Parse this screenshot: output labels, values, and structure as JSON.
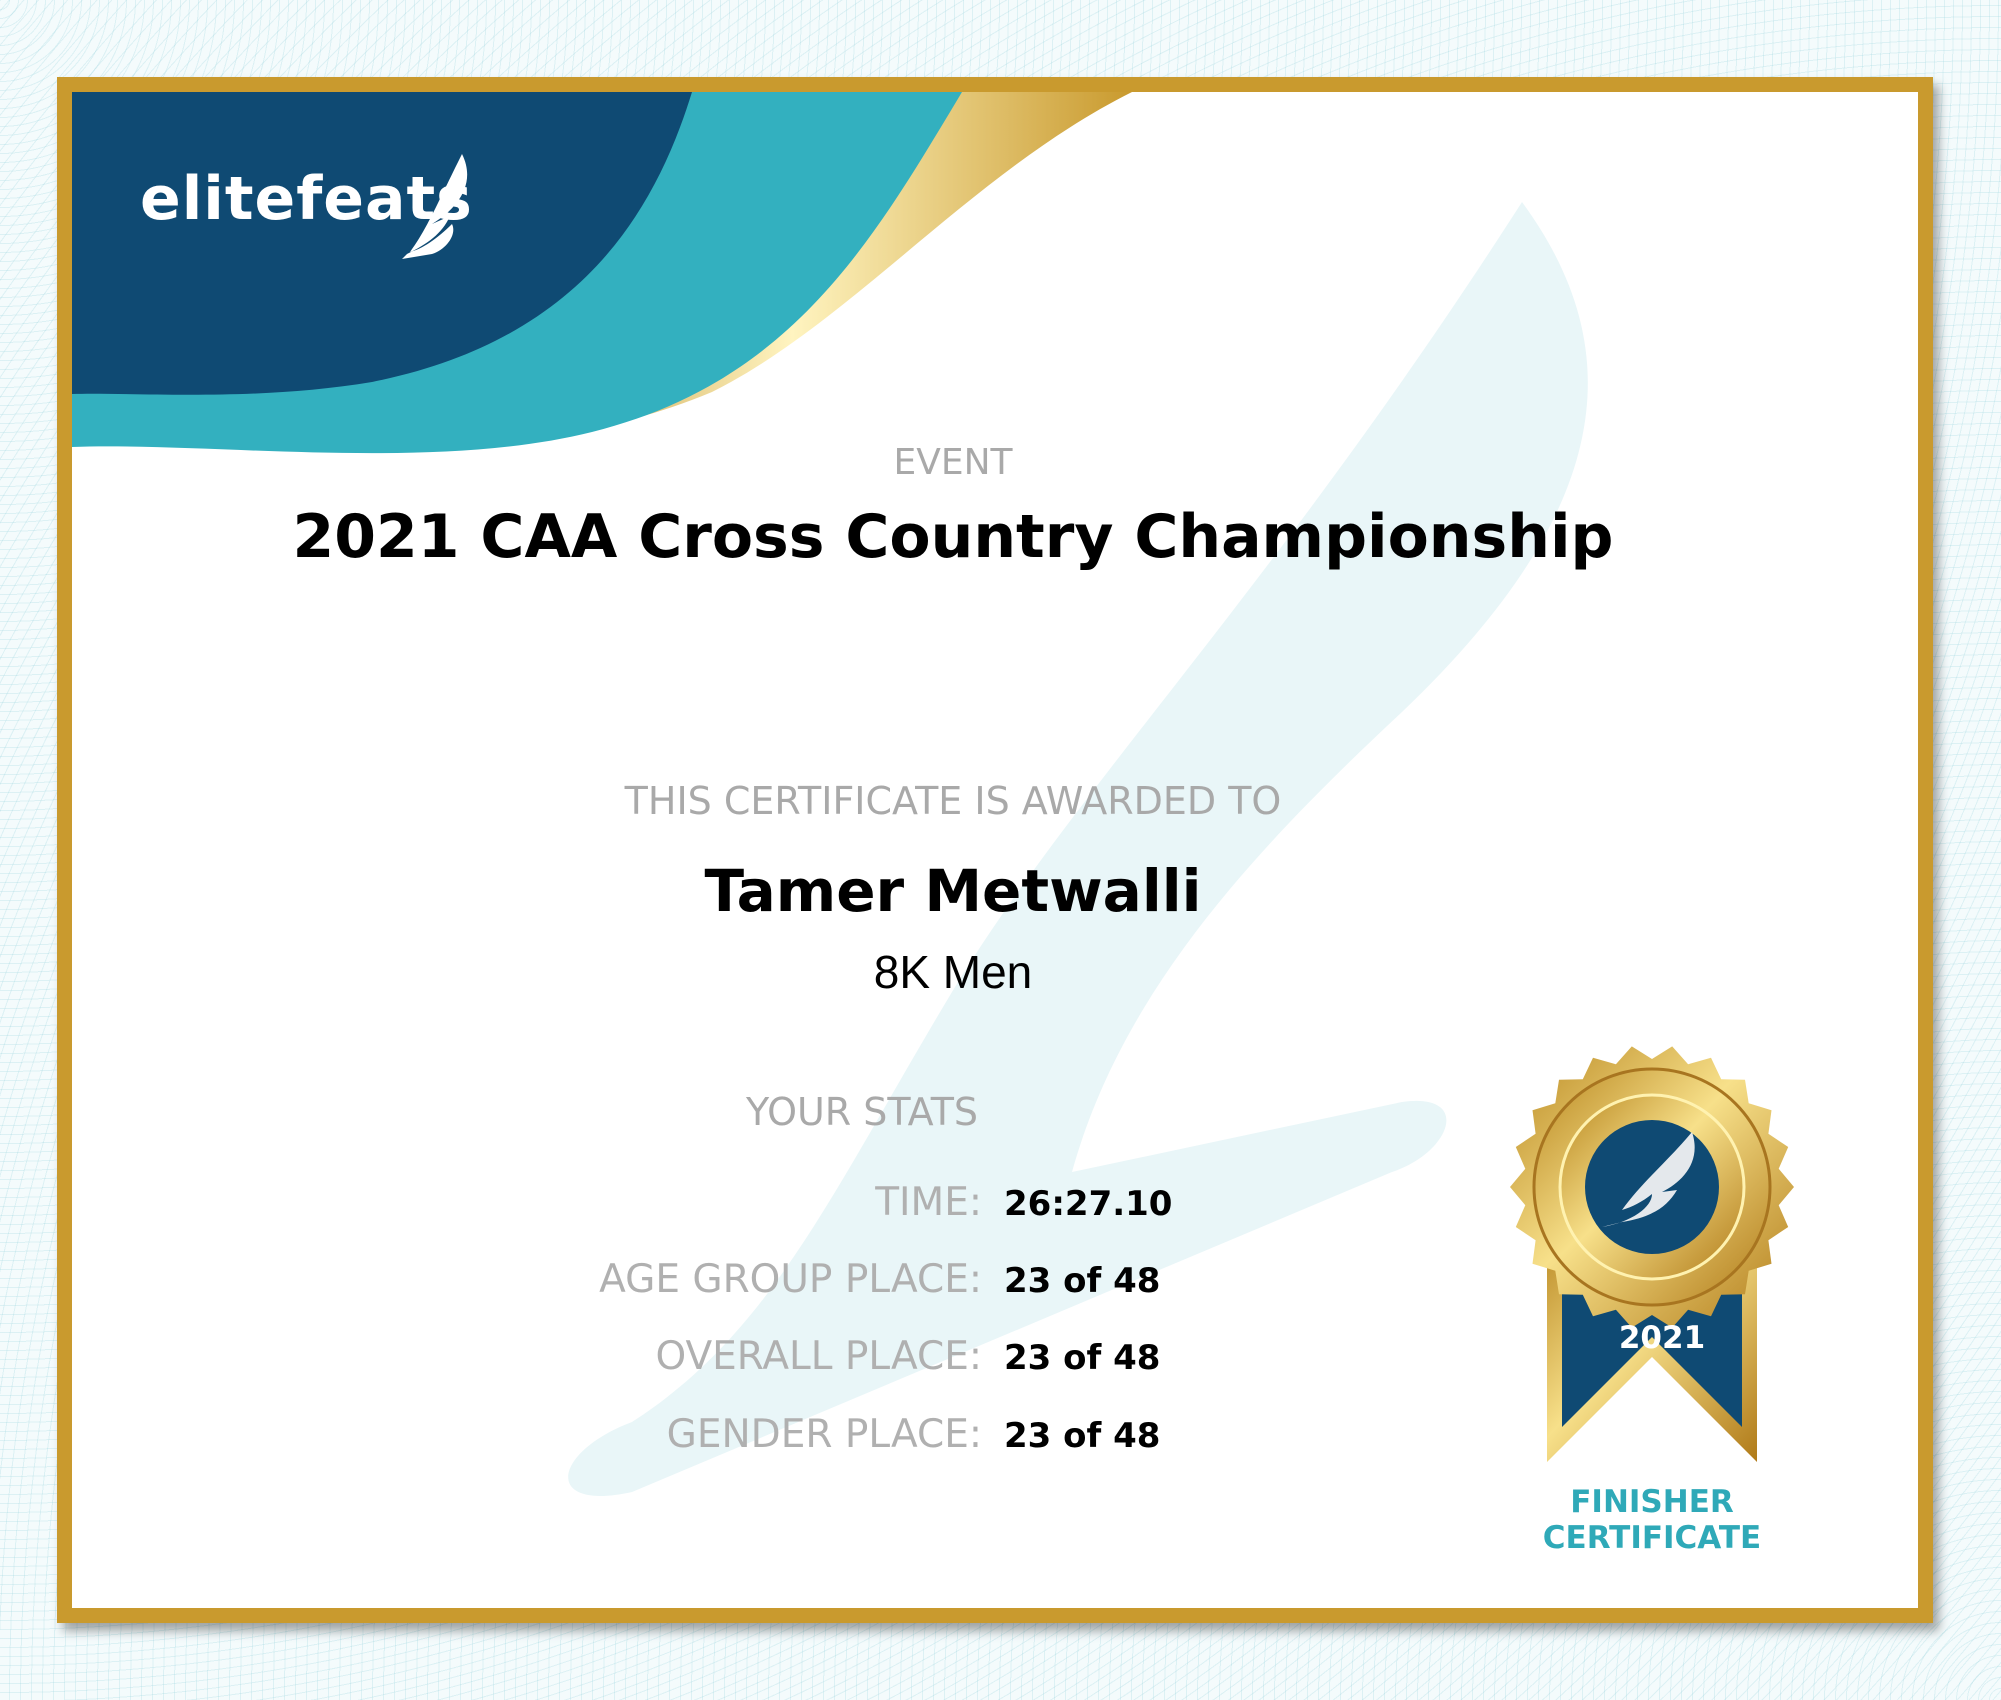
{
  "brand": {
    "logo_text": "elitefeats",
    "navy": "#0f4a73",
    "teal": "#33b0bf",
    "gold": "#c99a2e"
  },
  "event": {
    "label": "EVENT",
    "title": "2021 CAA Cross Country Championship"
  },
  "award": {
    "label": "THIS CERTIFICATE IS AWARDED TO",
    "name": "Tamer Metwalli",
    "division": "8K Men"
  },
  "stats": {
    "label": "YOUR STATS",
    "rows": [
      {
        "key": "TIME:",
        "value": "26:27.10"
      },
      {
        "key": "AGE GROUP PLACE:",
        "value": "23 of 48"
      },
      {
        "key": "OVERALL PLACE:",
        "value": "23 of 48"
      },
      {
        "key": "GENDER PLACE:",
        "value": "23 of 48"
      }
    ]
  },
  "medal": {
    "year": "2021",
    "line1": "FINISHER",
    "line2": "CERTIFICATE",
    "icon": "winged-foot-icon"
  }
}
